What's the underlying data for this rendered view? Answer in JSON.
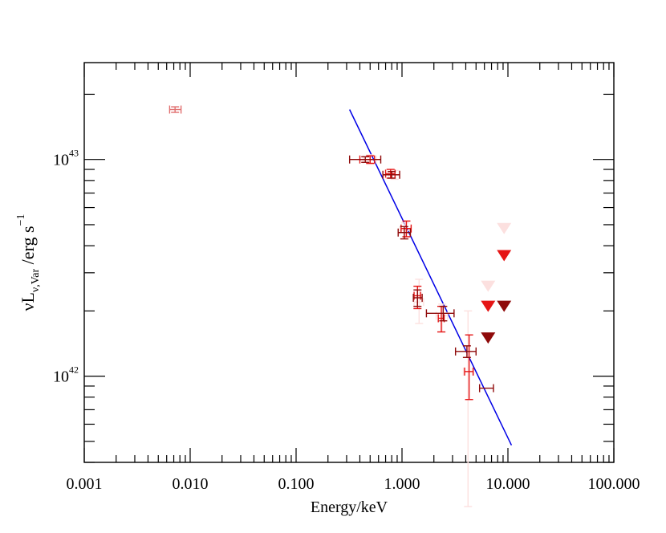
{
  "chart_data": {
    "type": "scatter",
    "title": "",
    "xlabel": "Energy/keV",
    "ylabel": {
      "prefix": "νL",
      "subscript": "ν,Var",
      "unit": " /erg s",
      "superscript": "−1"
    },
    "xscale": "log",
    "yscale": "log",
    "xlim": [
      0.001,
      100
    ],
    "ylim": [
      4e+41,
      2.8e+43
    ],
    "x_tick_labels": [
      "0.001",
      "0.010",
      "0.100",
      "1.000",
      "10.000",
      "100.000"
    ],
    "y_tick_labels": [
      {
        "mantissa": "10",
        "exponent": "42"
      },
      {
        "mantissa": "10",
        "exponent": "43"
      }
    ],
    "colors": {
      "light": "#fce0df",
      "salmon": "#e06e6e",
      "red": "#e51515",
      "darkred": "#8f0a0a",
      "model": "#0000e6"
    },
    "series": [
      {
        "name": "light-pink",
        "color": "#fce0df",
        "points": [
          {
            "x": 0.5,
            "y": 1e+43,
            "xerr": [
              0.43,
              0.57
            ],
            "yerr": [
              9.5e+42,
              1.05e+43
            ]
          },
          {
            "x": 0.85,
            "y": 8.5e+42,
            "xerr": [
              0.75,
              0.95
            ],
            "yerr": [
              8.1e+42,
              8.9e+42
            ]
          },
          {
            "x": 1.07,
            "y": 4.7e+42,
            "xerr": [
              0.95,
              1.2
            ],
            "yerr": [
              4.3e+42,
              5.1e+42
            ]
          },
          {
            "x": 1.45,
            "y": 2.2e+42,
            "xerr": [
              1.3,
              1.6
            ],
            "yerr": [
              1.75e+42,
              2.8e+42
            ]
          },
          {
            "x": 2.4,
            "y": 1.9e+42,
            "xerr": [
              2.1,
              2.7
            ],
            "yerr": [
              1.6e+42,
              2.15e+42
            ]
          },
          {
            "x": 4.2,
            "y": 1.05e+42,
            "xerr": [
              3.8,
              4.6
            ],
            "yerr": [
              2.5e+41,
              2e+42
            ]
          }
        ],
        "upper_limits": [
          {
            "x": 6.5,
            "y": 2.6e+42
          },
          {
            "x": 9.2,
            "y": 4.8e+42
          }
        ]
      },
      {
        "name": "salmon",
        "color": "#e06e6e",
        "points": [
          {
            "x": 0.0072,
            "y": 1.7e+43,
            "xerr": [
              0.0064,
              0.0082
            ],
            "yerr": [
              1.65e+43,
              1.75e+43
            ]
          }
        ],
        "upper_limits": []
      },
      {
        "name": "red",
        "color": "#e51515",
        "points": [
          {
            "x": 0.5,
            "y": 1e+43,
            "xerr": [
              0.4,
              0.55
            ],
            "yerr": [
              9.6e+42,
              1.04e+43
            ]
          },
          {
            "x": 0.78,
            "y": 8.6e+42,
            "xerr": [
              0.7,
              0.86
            ],
            "yerr": [
              8.2e+42,
              9e+42
            ]
          },
          {
            "x": 1.1,
            "y": 4.8e+42,
            "xerr": [
              0.98,
              1.22
            ],
            "yerr": [
              4.4e+42,
              5.2e+42
            ]
          },
          {
            "x": 1.4,
            "y": 2.35e+42,
            "xerr": [
              1.3,
              1.5
            ],
            "yerr": [
              2.05e+42,
              2.6e+42
            ]
          },
          {
            "x": 2.35,
            "y": 1.85e+42,
            "xerr": [
              2.2,
              2.5
            ],
            "yerr": [
              1.6e+42,
              2.1e+42
            ]
          },
          {
            "x": 4.3,
            "y": 1.05e+42,
            "xerr": [
              3.9,
              4.7
            ],
            "yerr": [
              7.8e+41,
              1.55e+42
            ]
          }
        ],
        "upper_limits": [
          {
            "x": 6.5,
            "y": 2.1e+42
          },
          {
            "x": 9.2,
            "y": 3.6e+42
          }
        ]
      },
      {
        "name": "dark-red",
        "color": "#8f0a0a",
        "points": [
          {
            "x": 0.45,
            "y": 1e+43,
            "xerr": [
              0.32,
              0.63
            ],
            "yerr": [
              9.7e+42,
              1.03e+43
            ]
          },
          {
            "x": 0.8,
            "y": 8.5e+42,
            "xerr": [
              0.66,
              0.95
            ],
            "yerr": [
              8.2e+42,
              8.8e+42
            ]
          },
          {
            "x": 1.05,
            "y": 4.6e+42,
            "xerr": [
              0.92,
              1.2
            ],
            "yerr": [
              4.3e+42,
              4.9e+42
            ]
          },
          {
            "x": 1.4,
            "y": 2.3e+42,
            "xerr": [
              1.28,
              1.55
            ],
            "yerr": [
              2.1e+42,
              2.5e+42
            ]
          },
          {
            "x": 2.45,
            "y": 1.95e+42,
            "xerr": [
              1.7,
              3.1
            ],
            "yerr": [
              1.8e+42,
              2.1e+42
            ]
          },
          {
            "x": 4.1,
            "y": 1.3e+42,
            "xerr": [
              3.2,
              5.0
            ],
            "yerr": [
              1.22e+42,
              1.38e+42
            ]
          },
          {
            "x": 6.3,
            "y": 8.8e+41,
            "xerr": [
              5.4,
              7.3
            ],
            "yerr": [
              8.8e+41,
              8.8e+41
            ]
          }
        ],
        "upper_limits": [
          {
            "x": 6.5,
            "y": 1.5e+42
          },
          {
            "x": 9.2,
            "y": 2.1e+42
          }
        ]
      }
    ],
    "model_line": {
      "name": "power-law fit",
      "color": "#0000e6",
      "x": [
        0.32,
        10.8
      ],
      "y": [
        1.7e+43,
        4.8e+41
      ]
    }
  }
}
